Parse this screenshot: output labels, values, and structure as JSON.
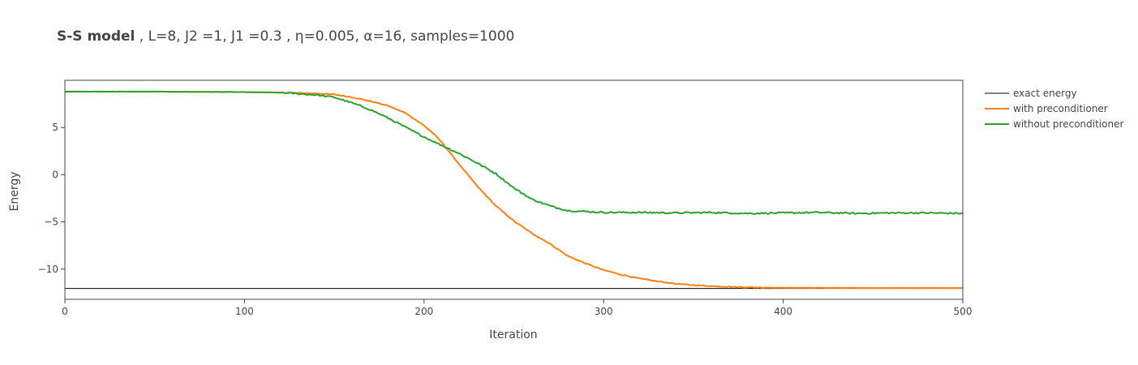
{
  "chart_data": {
    "type": "line",
    "title_bold": "S-S model",
    "title_rest": " , L=8, J2 =1, J1 =0.3 , η=0.005, α=16, samples=1000",
    "xlabel": "Iteration",
    "ylabel": "Energy",
    "xlim": [
      0,
      500
    ],
    "ylim": [
      -13.2,
      10
    ],
    "x_ticks": [
      0,
      100,
      200,
      300,
      400,
      500
    ],
    "y_ticks": [
      5,
      0,
      -5,
      -10
    ],
    "y_tick_labels": [
      "5",
      "0",
      "−5",
      "−10"
    ],
    "grid": false,
    "legend_position": "right",
    "series": [
      {
        "name": "exact energy",
        "color": "#000000",
        "x": [
          0,
          500
        ],
        "y": [
          -12.05,
          -12.05
        ]
      },
      {
        "name": "with preconditioner",
        "color": "#ff7f0e",
        "x": [
          0,
          50,
          100,
          120,
          140,
          150,
          160,
          170,
          180,
          190,
          200,
          205,
          210,
          220,
          230,
          240,
          250,
          260,
          270,
          280,
          290,
          300,
          310,
          320,
          330,
          340,
          350,
          360,
          370,
          380,
          400,
          450,
          500
        ],
        "y": [
          8.8,
          8.8,
          8.75,
          8.7,
          8.6,
          8.5,
          8.2,
          7.8,
          7.3,
          6.5,
          5.2,
          4.4,
          3.4,
          1.0,
          -1.3,
          -3.3,
          -4.9,
          -6.2,
          -7.3,
          -8.6,
          -9.4,
          -10.1,
          -10.6,
          -11.0,
          -11.3,
          -11.55,
          -11.7,
          -11.8,
          -11.87,
          -11.93,
          -11.98,
          -12.0,
          -12.0
        ]
      },
      {
        "name": "without preconditioner",
        "color": "#2ca02c",
        "x": [
          0,
          50,
          100,
          120,
          140,
          150,
          160,
          170,
          180,
          190,
          200,
          210,
          220,
          230,
          240,
          250,
          260,
          270,
          280,
          290,
          300,
          320,
          340,
          360,
          380,
          400,
          420,
          440,
          460,
          480,
          500
        ],
        "y": [
          8.8,
          8.8,
          8.75,
          8.7,
          8.45,
          8.2,
          7.6,
          6.9,
          6.0,
          5.0,
          4.0,
          3.1,
          2.2,
          1.2,
          0.1,
          -1.4,
          -2.6,
          -3.3,
          -3.8,
          -3.9,
          -4.0,
          -4.0,
          -4.05,
          -4.0,
          -4.1,
          -4.05,
          -4.0,
          -4.1,
          -4.05,
          -4.05,
          -4.1
        ]
      }
    ]
  }
}
